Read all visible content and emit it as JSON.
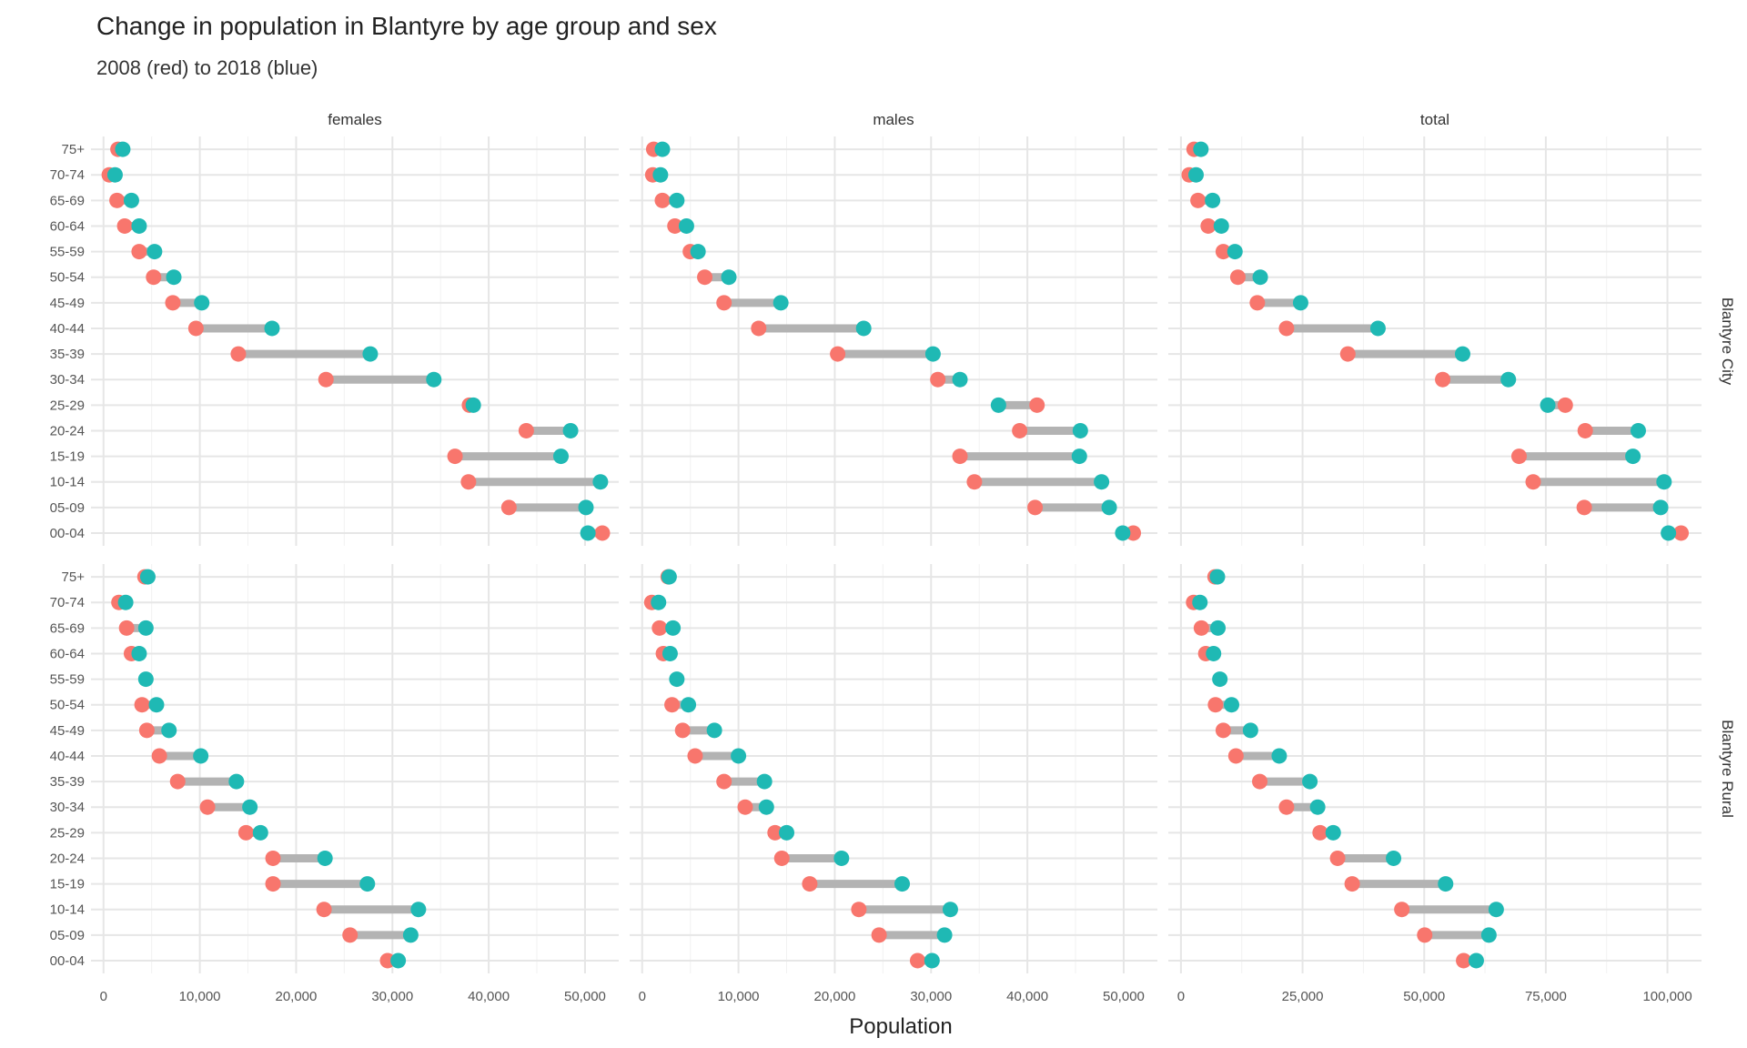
{
  "chart_data": {
    "type": "dumbbell",
    "title": "Change in population in Blantyre by age group and sex",
    "subtitle": "2008 (red) to 2018 (blue)",
    "xlabel": "Population",
    "ylabel": "",
    "grid": true,
    "legend": "none",
    "colors": {
      "y2008": "#f8766d",
      "y2018": "#1fb9b4",
      "segment": "#b3b3b3"
    },
    "columns": [
      "females",
      "males",
      "total"
    ],
    "rows": [
      "Blantyre City",
      "Blantyre Rural"
    ],
    "age_groups": [
      "75+",
      "70-74",
      "65-69",
      "60-64",
      "55-59",
      "50-54",
      "45-49",
      "40-44",
      "35-39",
      "30-34",
      "25-29",
      "20-24",
      "15-19",
      "10-14",
      "05-09",
      "00-04"
    ],
    "xaxes": {
      "females": {
        "ticks": [
          0,
          10000,
          20000,
          30000,
          40000,
          50000
        ],
        "tick_labels": [
          "0",
          "10,000",
          "20,000",
          "30,000",
          "40,000",
          "50,000"
        ],
        "xlim": [
          -1300,
          53500
        ]
      },
      "males": {
        "ticks": [
          0,
          10000,
          20000,
          30000,
          40000,
          50000
        ],
        "tick_labels": [
          "0",
          "10,000",
          "20,000",
          "30,000",
          "40,000",
          "50,000"
        ],
        "xlim": [
          -1300,
          53500
        ]
      },
      "total": {
        "ticks": [
          0,
          25000,
          50000,
          75000,
          100000
        ],
        "tick_labels": [
          "0",
          "25,000",
          "50,000",
          "75,000",
          "100,000"
        ],
        "xlim": [
          -2600,
          107000
        ]
      }
    },
    "panels": [
      {
        "row": "Blantyre City",
        "column": "females",
        "y2008": [
          1500,
          600,
          1400,
          2200,
          3700,
          5200,
          7200,
          9600,
          14000,
          23100,
          38000,
          43900,
          36500,
          37900,
          42100,
          51800
        ],
        "y2018": [
          2000,
          1200,
          2900,
          3700,
          5300,
          7300,
          10200,
          17500,
          27700,
          34300,
          38400,
          48500,
          47500,
          51600,
          50100,
          50300
        ]
      },
      {
        "row": "Blantyre City",
        "column": "males",
        "y2008": [
          1200,
          1100,
          2100,
          3400,
          5000,
          6500,
          8500,
          12100,
          20300,
          30700,
          41000,
          39200,
          33000,
          34500,
          40800,
          51000
        ],
        "y2018": [
          2100,
          1900,
          3600,
          4600,
          5800,
          9000,
          14400,
          23000,
          30200,
          33000,
          37000,
          45500,
          45400,
          47700,
          48500,
          49900
        ]
      },
      {
        "row": "Blantyre City",
        "column": "total",
        "y2008": [
          2700,
          1700,
          3500,
          5600,
          8700,
          11700,
          15700,
          21700,
          34300,
          53800,
          79000,
          83100,
          69500,
          72400,
          82900,
          102800
        ],
        "y2018": [
          4100,
          3100,
          6500,
          8300,
          11100,
          16300,
          24600,
          40500,
          57900,
          67300,
          75400,
          94000,
          92900,
          99300,
          98600,
          100200
        ]
      },
      {
        "row": "Blantyre Rural",
        "column": "females",
        "y2008": [
          4300,
          1600,
          2400,
          2900,
          null,
          4000,
          4500,
          5800,
          7700,
          10800,
          14800,
          17600,
          17600,
          22900,
          25600,
          29500
        ],
        "y2018": [
          4600,
          2300,
          4400,
          3700,
          4400,
          5500,
          6800,
          10100,
          13800,
          15200,
          16300,
          23000,
          27400,
          32700,
          31900,
          30600
        ]
      },
      {
        "row": "Blantyre Rural",
        "column": "males",
        "y2008": [
          2700,
          1000,
          1800,
          2200,
          null,
          3100,
          4200,
          5500,
          8500,
          10700,
          13800,
          14500,
          17400,
          22500,
          24600,
          28600
        ],
        "y2018": [
          2800,
          1700,
          3200,
          2900,
          3600,
          4800,
          7500,
          10000,
          12700,
          12900,
          15000,
          20700,
          27000,
          32000,
          31400,
          30100
        ]
      },
      {
        "row": "Blantyre Rural",
        "column": "total",
        "y2008": [
          7000,
          2600,
          4200,
          5100,
          null,
          7100,
          8700,
          11300,
          16200,
          21700,
          28600,
          32200,
          35200,
          45400,
          50100,
          58100
        ],
        "y2018": [
          7500,
          3900,
          7600,
          6700,
          8000,
          10400,
          14300,
          20200,
          26500,
          28100,
          31300,
          43700,
          54400,
          64800,
          63300,
          60700
        ]
      }
    ]
  }
}
